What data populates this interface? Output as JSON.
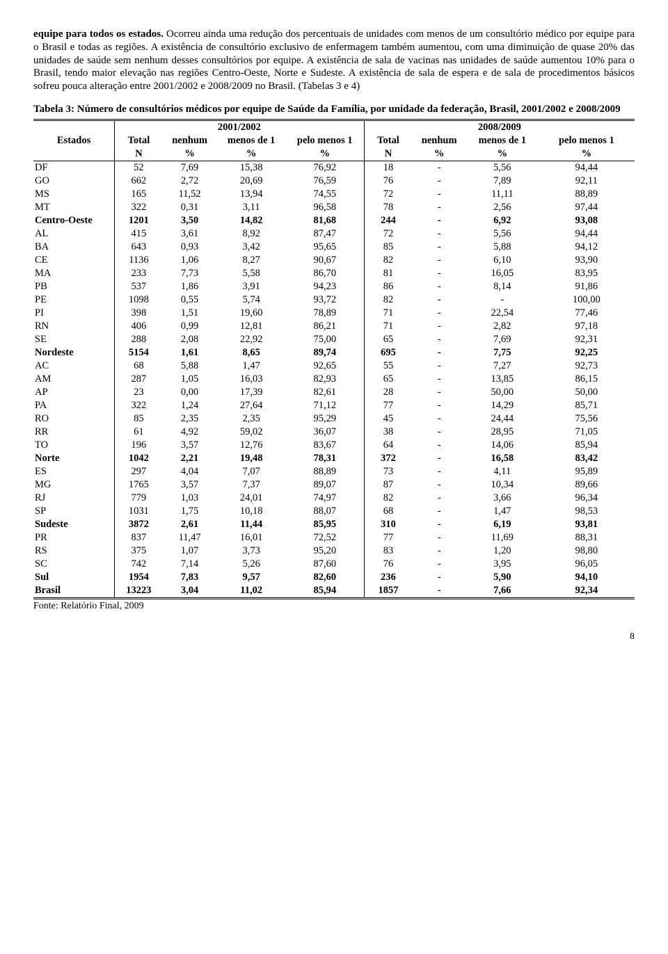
{
  "paragraph_html": "<span class=\"bold-run\">equipe para todos os estados.</span> Ocorreu ainda uma redução dos percentuais de unidades com menos de um consultório médico por equipe para o Brasil e todas as regiões. A existência de consultório exclusivo de enfermagem também aumentou, com uma diminuição de quase 20% das unidades de saúde sem nenhum desses consultórios por equipe. A existência de sala de vacinas nas unidades de saúde aumentou 10% para o Brasil, tendo maior elevação nas regiões Centro-Oeste, Norte e Sudeste. A existência de sala de espera e de sala de procedimentos básicos sofreu pouca alteração entre 2001/2002 e 2008/2009 no Brasil. (Tabelas 3 e 4)",
  "table_title": "Tabela 3: Número de consultórios médicos por equipe de Saúde da Família, por unidade da federação, Brasil, 2001/2002 e 2008/2009",
  "header": {
    "estados": "Estados",
    "y1": "2001/2002",
    "y2": "2008/2009",
    "total": "Total",
    "nenhum": "nenhum",
    "menos1": "menos de 1",
    "pelo1": "pelo menos 1",
    "N": "N",
    "pct": "%"
  },
  "rows": [
    {
      "r": 0,
      "lbl": "DF",
      "a": [
        "52",
        "7,69",
        "15,38",
        "76,92"
      ],
      "b": [
        "18",
        "-",
        "5,56",
        "94,44"
      ]
    },
    {
      "r": 0,
      "lbl": "GO",
      "a": [
        "662",
        "2,72",
        "20,69",
        "76,59"
      ],
      "b": [
        "76",
        "-",
        "7,89",
        "92,11"
      ]
    },
    {
      "r": 0,
      "lbl": "MS",
      "a": [
        "165",
        "11,52",
        "13,94",
        "74,55"
      ],
      "b": [
        "72",
        "-",
        "11,11",
        "88,89"
      ]
    },
    {
      "r": 0,
      "lbl": "MT",
      "a": [
        "322",
        "0,31",
        "3,11",
        "96,58"
      ],
      "b": [
        "78",
        "-",
        "2,56",
        "97,44"
      ]
    },
    {
      "r": 1,
      "lbl": "Centro-Oeste",
      "a": [
        "1201",
        "3,50",
        "14,82",
        "81,68"
      ],
      "b": [
        "244",
        "-",
        "6,92",
        "93,08"
      ]
    },
    {
      "r": 0,
      "lbl": "AL",
      "a": [
        "415",
        "3,61",
        "8,92",
        "87,47"
      ],
      "b": [
        "72",
        "-",
        "5,56",
        "94,44"
      ]
    },
    {
      "r": 0,
      "lbl": "BA",
      "a": [
        "643",
        "0,93",
        "3,42",
        "95,65"
      ],
      "b": [
        "85",
        "-",
        "5,88",
        "94,12"
      ]
    },
    {
      "r": 0,
      "lbl": "CE",
      "a": [
        "1136",
        "1,06",
        "8,27",
        "90,67"
      ],
      "b": [
        "82",
        "-",
        "6,10",
        "93,90"
      ]
    },
    {
      "r": 0,
      "lbl": "MA",
      "a": [
        "233",
        "7,73",
        "5,58",
        "86,70"
      ],
      "b": [
        "81",
        "-",
        "16,05",
        "83,95"
      ]
    },
    {
      "r": 0,
      "lbl": "PB",
      "a": [
        "537",
        "1,86",
        "3,91",
        "94,23"
      ],
      "b": [
        "86",
        "-",
        "8,14",
        "91,86"
      ]
    },
    {
      "r": 0,
      "lbl": "PE",
      "a": [
        "1098",
        "0,55",
        "5,74",
        "93,72"
      ],
      "b": [
        "82",
        "-",
        "-",
        "100,00"
      ]
    },
    {
      "r": 0,
      "lbl": "PI",
      "a": [
        "398",
        "1,51",
        "19,60",
        "78,89"
      ],
      "b": [
        "71",
        "-",
        "22,54",
        "77,46"
      ]
    },
    {
      "r": 0,
      "lbl": "RN",
      "a": [
        "406",
        "0,99",
        "12,81",
        "86,21"
      ],
      "b": [
        "71",
        "-",
        "2,82",
        "97,18"
      ]
    },
    {
      "r": 0,
      "lbl": "SE",
      "a": [
        "288",
        "2,08",
        "22,92",
        "75,00"
      ],
      "b": [
        "65",
        "-",
        "7,69",
        "92,31"
      ]
    },
    {
      "r": 1,
      "lbl": "Nordeste",
      "a": [
        "5154",
        "1,61",
        "8,65",
        "89,74"
      ],
      "b": [
        "695",
        "-",
        "7,75",
        "92,25"
      ]
    },
    {
      "r": 0,
      "lbl": "AC",
      "a": [
        "68",
        "5,88",
        "1,47",
        "92,65"
      ],
      "b": [
        "55",
        "-",
        "7,27",
        "92,73"
      ]
    },
    {
      "r": 0,
      "lbl": "AM",
      "a": [
        "287",
        "1,05",
        "16,03",
        "82,93"
      ],
      "b": [
        "65",
        "-",
        "13,85",
        "86,15"
      ]
    },
    {
      "r": 0,
      "lbl": "AP",
      "a": [
        "23",
        "0,00",
        "17,39",
        "82,61"
      ],
      "b": [
        "28",
        "-",
        "50,00",
        "50,00"
      ]
    },
    {
      "r": 0,
      "lbl": "PA",
      "a": [
        "322",
        "1,24",
        "27,64",
        "71,12"
      ],
      "b": [
        "77",
        "-",
        "14,29",
        "85,71"
      ]
    },
    {
      "r": 0,
      "lbl": "RO",
      "a": [
        "85",
        "2,35",
        "2,35",
        "95,29"
      ],
      "b": [
        "45",
        "-",
        "24,44",
        "75,56"
      ]
    },
    {
      "r": 0,
      "lbl": "RR",
      "a": [
        "61",
        "4,92",
        "59,02",
        "36,07"
      ],
      "b": [
        "38",
        "-",
        "28,95",
        "71,05"
      ]
    },
    {
      "r": 0,
      "lbl": "TO",
      "a": [
        "196",
        "3,57",
        "12,76",
        "83,67"
      ],
      "b": [
        "64",
        "-",
        "14,06",
        "85,94"
      ]
    },
    {
      "r": 1,
      "lbl": "Norte",
      "a": [
        "1042",
        "2,21",
        "19,48",
        "78,31"
      ],
      "b": [
        "372",
        "-",
        "16,58",
        "83,42"
      ]
    },
    {
      "r": 0,
      "lbl": "ES",
      "a": [
        "297",
        "4,04",
        "7,07",
        "88,89"
      ],
      "b": [
        "73",
        "-",
        "4,11",
        "95,89"
      ]
    },
    {
      "r": 0,
      "lbl": "MG",
      "a": [
        "1765",
        "3,57",
        "7,37",
        "89,07"
      ],
      "b": [
        "87",
        "-",
        "10,34",
        "89,66"
      ]
    },
    {
      "r": 0,
      "lbl": "RJ",
      "a": [
        "779",
        "1,03",
        "24,01",
        "74,97"
      ],
      "b": [
        "82",
        "-",
        "3,66",
        "96,34"
      ]
    },
    {
      "r": 0,
      "lbl": "SP",
      "a": [
        "1031",
        "1,75",
        "10,18",
        "88,07"
      ],
      "b": [
        "68",
        "-",
        "1,47",
        "98,53"
      ]
    },
    {
      "r": 1,
      "lbl": "Sudeste",
      "a": [
        "3872",
        "2,61",
        "11,44",
        "85,95"
      ],
      "b": [
        "310",
        "-",
        "6,19",
        "93,81"
      ]
    },
    {
      "r": 0,
      "lbl": "PR",
      "a": [
        "837",
        "11,47",
        "16,01",
        "72,52"
      ],
      "b": [
        "77",
        "-",
        "11,69",
        "88,31"
      ]
    },
    {
      "r": 0,
      "lbl": "RS",
      "a": [
        "375",
        "1,07",
        "3,73",
        "95,20"
      ],
      "b": [
        "83",
        "-",
        "1,20",
        "98,80"
      ]
    },
    {
      "r": 0,
      "lbl": "SC",
      "a": [
        "742",
        "7,14",
        "5,26",
        "87,60"
      ],
      "b": [
        "76",
        "-",
        "3,95",
        "96,05"
      ]
    },
    {
      "r": 1,
      "lbl": "Sul",
      "a": [
        "1954",
        "7,83",
        "9,57",
        "82,60"
      ],
      "b": [
        "236",
        "-",
        "5,90",
        "94,10"
      ]
    },
    {
      "r": 1,
      "lbl": "Brasil",
      "a": [
        "13223",
        "3,04",
        "11,02",
        "85,94"
      ],
      "b": [
        "1857",
        "-",
        "7,66",
        "92,34"
      ]
    }
  ],
  "source": "Fonte: Relatório Final, 2009",
  "page_number": "8",
  "style": {
    "font_family": "Times New Roman",
    "body_fontsize_pt": 15,
    "table_fontsize_pt": 14.5,
    "text_color": "#000000",
    "background_color": "#ffffff",
    "border_color": "#000000",
    "col_widths_pct": [
      13.5,
      8,
      9,
      11.5,
      13,
      8,
      9,
      12,
      16
    ]
  }
}
